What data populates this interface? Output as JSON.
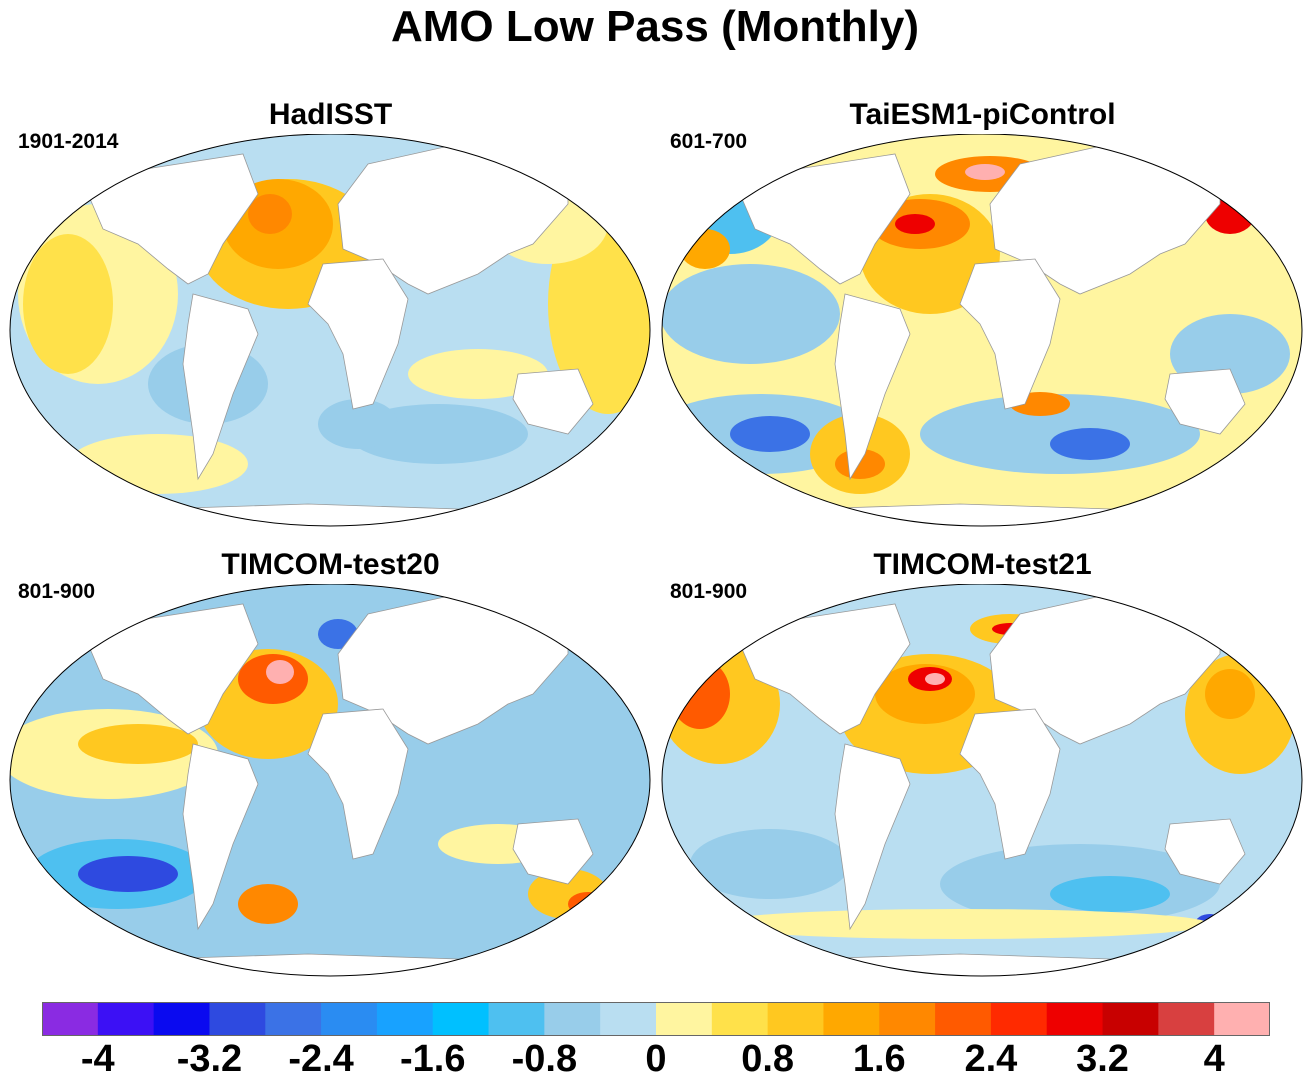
{
  "title": "AMO Low Pass (Monthly)",
  "colors": {
    "scale": [
      "#8a2be2",
      "#3c10f5",
      "#0a0af0",
      "#2e4ae0",
      "#3b72e6",
      "#2a8cf2",
      "#18a2ff",
      "#00c0ff",
      "#4ec0f0",
      "#98cdea",
      "#b9def1",
      "#fff5a0",
      "#ffe14a",
      "#ffc820",
      "#ffa800",
      "#ff8800",
      "#ff5a00",
      "#ff2a00",
      "#ee0000",
      "#c80000",
      "#d84040",
      "#ffb0b0"
    ],
    "land": "#ffffff",
    "coast": "#999999"
  },
  "panels": [
    {
      "title": "HadISST",
      "period": "1901-2014"
    },
    {
      "title": "TaiESM1-piControl",
      "period": "601-700"
    },
    {
      "title": "TIMCOM-test20",
      "period": "801-900"
    },
    {
      "title": "TIMCOM-test21",
      "period": "801-900"
    }
  ],
  "colorbar": {
    "labels": [
      "-4",
      "-3.2",
      "-2.4",
      "-1.6",
      "-0.8",
      "0",
      "0.8",
      "1.6",
      "2.4",
      "3.2",
      "4"
    ]
  }
}
